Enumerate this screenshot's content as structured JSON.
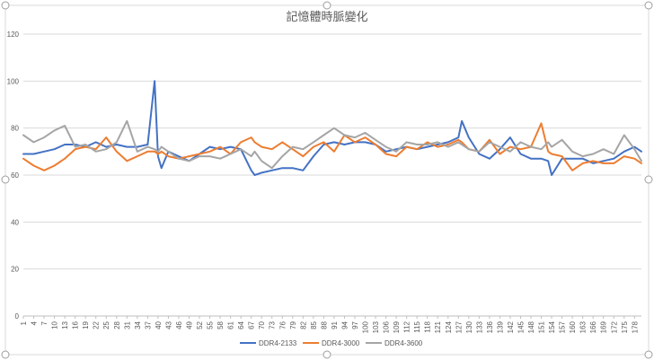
{
  "chart_data": {
    "type": "line",
    "title": "記憶體時脈變化",
    "xlabel": "",
    "ylabel": "",
    "ylim": [
      0,
      120
    ],
    "y_ticks": [
      0,
      20,
      40,
      60,
      80,
      100,
      120
    ],
    "x_tick_labels": [
      "1",
      "4",
      "7",
      "10",
      "13",
      "16",
      "19",
      "22",
      "25",
      "28",
      "31",
      "34",
      "37",
      "40",
      "43",
      "46",
      "49",
      "52",
      "55",
      "58",
      "61",
      "64",
      "67",
      "70",
      "73",
      "76",
      "79",
      "82",
      "85",
      "88",
      "91",
      "94",
      "97",
      "100",
      "103",
      "106",
      "109",
      "112",
      "115",
      "118",
      "121",
      "124",
      "127",
      "130",
      "133",
      "136",
      "139",
      "142",
      "145",
      "148",
      "151",
      "154",
      "157",
      "160",
      "163",
      "166",
      "169",
      "172",
      "175",
      "178"
    ],
    "grid": "horizontal",
    "legend_position": "bottom",
    "x": [
      1,
      4,
      7,
      10,
      13,
      16,
      19,
      22,
      25,
      28,
      31,
      34,
      37,
      39,
      40,
      41,
      43,
      46,
      49,
      52,
      55,
      58,
      61,
      64,
      67,
      68,
      70,
      73,
      76,
      79,
      82,
      85,
      88,
      91,
      94,
      97,
      100,
      103,
      106,
      109,
      112,
      115,
      118,
      121,
      124,
      127,
      128,
      130,
      133,
      136,
      139,
      142,
      145,
      148,
      151,
      153,
      154,
      157,
      160,
      163,
      166,
      169,
      172,
      175,
      178,
      180
    ],
    "series": [
      {
        "name": "DDR4-2133",
        "color": "#4472C4",
        "values": [
          69,
          69,
          70,
          71,
          73,
          73,
          72,
          74,
          72,
          73,
          72,
          72,
          73,
          100,
          68,
          63,
          70,
          68,
          66,
          69,
          72,
          71,
          72,
          71,
          62,
          60,
          61,
          62,
          63,
          63,
          62,
          68,
          73,
          74,
          73,
          74,
          74,
          73,
          70,
          71,
          72,
          71,
          72,
          73,
          74,
          76,
          83,
          76,
          69,
          67,
          71,
          76,
          69,
          67,
          67,
          66,
          60,
          67,
          67,
          67,
          65,
          66,
          67,
          70,
          72,
          70
        ]
      },
      {
        "name": "DDR4-3000",
        "color": "#ED7D31",
        "values": [
          67,
          64,
          62,
          64,
          67,
          71,
          72,
          71,
          76,
          70,
          66,
          68,
          70,
          70,
          69,
          70,
          68,
          67,
          68,
          69,
          70,
          72,
          69,
          74,
          76,
          74,
          72,
          71,
          74,
          71,
          68,
          72,
          74,
          70,
          77,
          74,
          76,
          73,
          69,
          68,
          72,
          71,
          74,
          72,
          73,
          75,
          74,
          71,
          70,
          75,
          69,
          72,
          71,
          72,
          82,
          70,
          69,
          68,
          62,
          65,
          66,
          65,
          65,
          68,
          67,
          65
        ]
      },
      {
        "name": "DDR4-3600",
        "color": "#A5A5A5",
        "values": [
          77,
          74,
          76,
          79,
          81,
          72,
          73,
          70,
          71,
          74,
          83,
          70,
          72,
          71,
          70,
          72,
          70,
          67,
          66,
          68,
          68,
          67,
          69,
          71,
          68,
          70,
          66,
          63,
          68,
          72,
          71,
          74,
          77,
          80,
          77,
          76,
          78,
          75,
          72,
          70,
          74,
          73,
          73,
          74,
          72,
          74,
          73,
          71,
          70,
          74,
          72,
          70,
          74,
          72,
          71,
          74,
          72,
          75,
          70,
          68,
          69,
          71,
          69,
          77,
          71,
          66
        ]
      }
    ]
  }
}
